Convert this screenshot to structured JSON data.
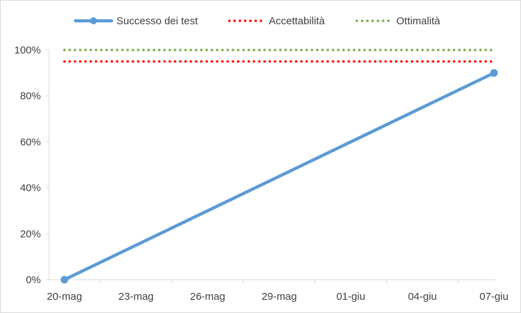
{
  "chart_data": {
    "type": "line",
    "x": [
      "20-mag",
      "23-mag",
      "26-mag",
      "29-mag",
      "01-giu",
      "04-giu",
      "07-giu"
    ],
    "ylim": [
      0,
      1
    ],
    "yticks": [
      "0%",
      "20%",
      "40%",
      "60%",
      "80%",
      "100%"
    ],
    "ytick_values": [
      0,
      0.2,
      0.4,
      0.6,
      0.8,
      1.0
    ],
    "grid": false,
    "legend": "top",
    "series": [
      {
        "name": "Successo dei test",
        "color": "#5b9bd5",
        "style": "solid-marker",
        "points": [
          {
            "x": "20-mag",
            "y": 0
          },
          {
            "x": "07-giu",
            "y": 0.9
          }
        ]
      },
      {
        "name": "Accettabilità",
        "color": "#ff0000",
        "style": "dotted",
        "points": [
          {
            "x": "20-mag",
            "y": 0.95
          },
          {
            "x": "07-giu",
            "y": 0.95
          }
        ]
      },
      {
        "name": "Ottimalità",
        "color": "#70ad47",
        "style": "dotted",
        "points": [
          {
            "x": "20-mag",
            "y": 1.0
          },
          {
            "x": "07-giu",
            "y": 1.0
          }
        ]
      }
    ]
  }
}
